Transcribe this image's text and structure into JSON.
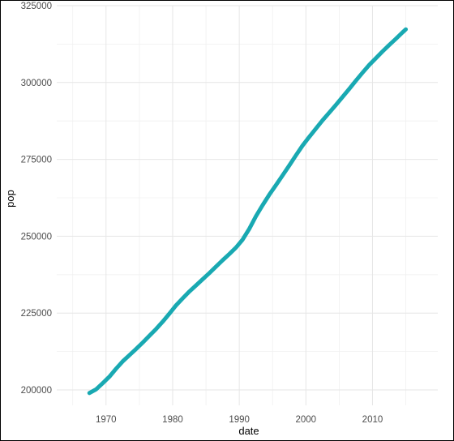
{
  "chart_data": {
    "type": "line",
    "xlabel": "date",
    "ylabel": "pop",
    "x_ticks": [
      "1970",
      "1980",
      "1990",
      "2000",
      "2010"
    ],
    "x_tick_values": [
      1970,
      1980,
      1990,
      2000,
      2010
    ],
    "y_ticks": [
      "200000",
      "225000",
      "250000",
      "275000",
      "300000",
      "325000"
    ],
    "y_tick_values": [
      200000,
      225000,
      250000,
      275000,
      300000,
      325000
    ],
    "xlim": [
      1962.6,
      2019.8
    ],
    "ylim": [
      195000,
      325000
    ],
    "grid": true,
    "line_color": "#19A9B2",
    "series": [
      {
        "x": [
          1967.5,
          1968.5,
          1969.5,
          1970.5,
          1971.5,
          1972.5,
          1973.5,
          1974.5,
          1975.5,
          1976.5,
          1977.5,
          1978.5,
          1979.5,
          1980.5,
          1981.5,
          1982.5,
          1983.5,
          1984.5,
          1985.5,
          1986.5,
          1987.5,
          1988.5,
          1989.5,
          1990.5,
          1991.5,
          1992.5,
          1993.5,
          1994.5,
          1995.5,
          1996.5,
          1997.5,
          1998.5,
          1999.5,
          2000.5,
          2001.5,
          2002.5,
          2003.5,
          2004.5,
          2005.5,
          2006.5,
          2007.5,
          2008.5,
          2009.5,
          2010.5,
          2011.5,
          2012.5,
          2013.5,
          2014.5,
          2015.0
        ],
        "values": [
          199000,
          200200,
          202200,
          204300,
          206900,
          209300,
          211300,
          213300,
          215400,
          217600,
          219800,
          222200,
          224800,
          227500,
          229800,
          232000,
          234000,
          236000,
          238000,
          240100,
          242200,
          244200,
          246300,
          248900,
          252400,
          256500,
          260100,
          263500,
          266600,
          269800,
          273000,
          276300,
          279500,
          282300,
          285000,
          287700,
          290200,
          292700,
          295300,
          297900,
          300600,
          303200,
          305700,
          307900,
          310100,
          312200,
          314200,
          316300,
          317300
        ]
      }
    ]
  }
}
